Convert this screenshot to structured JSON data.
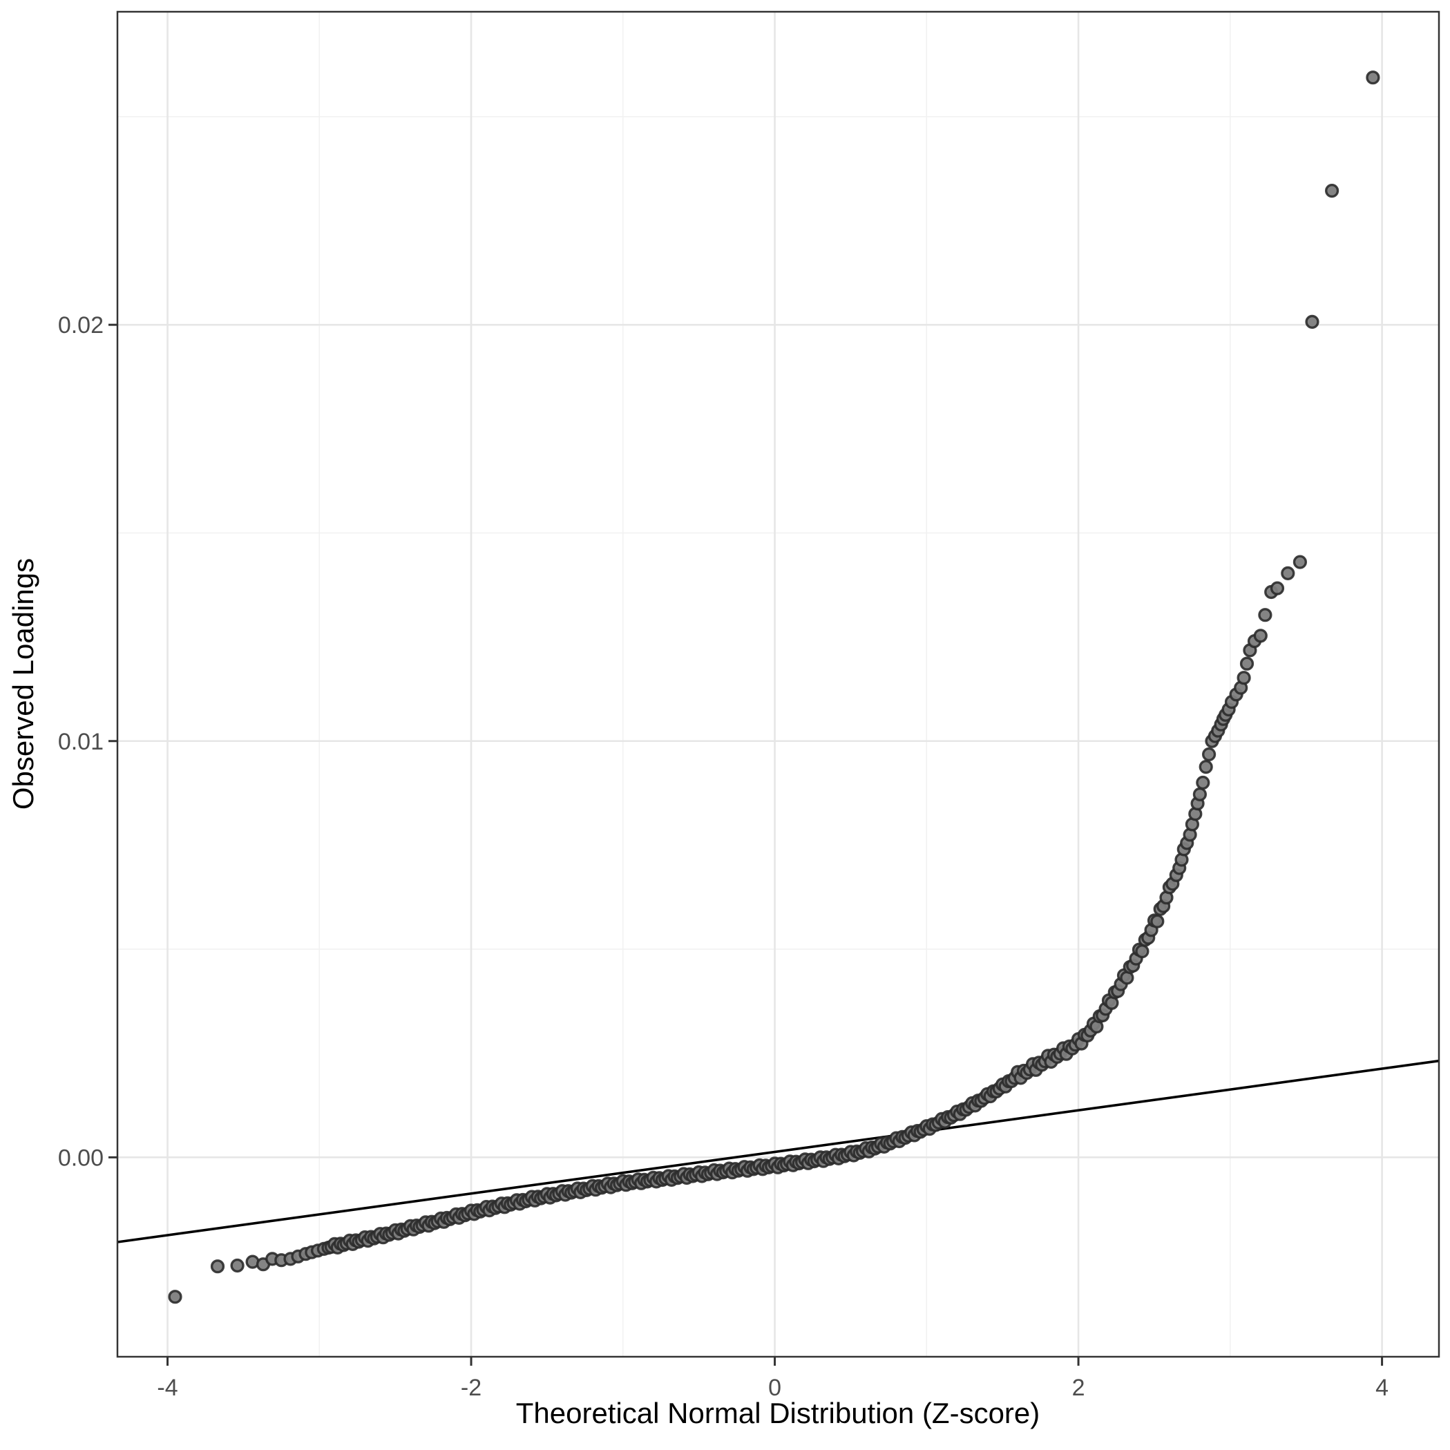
{
  "figure": {
    "background": "#ffffff",
    "panel_border_color": "#333333",
    "tick_color": "#333333",
    "tick_label_color": "#4d4d4d",
    "title_color": "#000000"
  },
  "chart_data": {
    "type": "scatter",
    "title": "",
    "xlabel": "Theoretical Normal Distribution (Z-score)",
    "ylabel": "Observed Loadings",
    "xlim": [
      -4.33,
      4.375
    ],
    "ylim": [
      -0.00479,
      0.02752
    ],
    "grid": {
      "major_color": "#e6e6e6",
      "minor_color": "#f1f1f1",
      "major_width": 2.6,
      "minor_width": 1.5
    },
    "x_major_ticks": [
      {
        "value": -4,
        "label": "-4"
      },
      {
        "value": -2,
        "label": "-2"
      },
      {
        "value": 0,
        "label": "0"
      },
      {
        "value": 2,
        "label": "2"
      },
      {
        "value": 4,
        "label": "4"
      }
    ],
    "x_minor_ticks": [
      -3,
      -1,
      1,
      3
    ],
    "y_major_ticks": [
      {
        "value": 0.0,
        "label": "0.00"
      },
      {
        "value": 0.01,
        "label": "0.01"
      },
      {
        "value": 0.02,
        "label": "0.02"
      }
    ],
    "y_minor_ticks": [
      0.005,
      0.015,
      0.025
    ],
    "reference_line": {
      "slope": 0.0005,
      "intercept": 0.00013,
      "color": "#000000",
      "width": 3.6
    },
    "point_style": {
      "radius": 8.4,
      "fill": "#7d7d7d",
      "fill_opacity": 0.95,
      "stroke": "#2b2b2b",
      "stroke_opacity": 0.9,
      "stroke_width": 3.4
    },
    "series": {
      "lower_tail_points": [
        [
          -3.95,
          -0.00335
        ],
        [
          -3.67,
          -0.00262
        ],
        [
          -3.54,
          -0.0026
        ],
        [
          -3.44,
          -0.00251
        ],
        [
          -3.37,
          -0.00257
        ],
        [
          -3.31,
          -0.00244
        ],
        [
          -3.25,
          -0.00247
        ],
        [
          -3.19,
          -0.00244
        ],
        [
          -3.14,
          -0.00238
        ],
        [
          -3.09,
          -0.00232
        ],
        [
          -3.05,
          -0.00228
        ],
        [
          -3.01,
          -0.00224
        ],
        [
          -2.97,
          -0.0022
        ],
        [
          -2.94,
          -0.00217
        ]
      ],
      "dense_band": {
        "note": "overplotted single-file chain of points; anchors are centerline readings",
        "z_start": -2.92,
        "z_end": 2.6,
        "z_step": 0.02,
        "jitter": 5e-05,
        "anchors": [
          [
            -2.92,
            -0.00215
          ],
          [
            -2.8,
            -0.00205
          ],
          [
            -2.7,
            -0.00197
          ],
          [
            -2.6,
            -0.00189
          ],
          [
            -2.5,
            -0.0018
          ],
          [
            -2.4,
            -0.0017
          ],
          [
            -2.3,
            -0.00161
          ],
          [
            -2.2,
            -0.00152
          ],
          [
            -2.1,
            -0.00142
          ],
          [
            -2.0,
            -0.00133
          ],
          [
            -1.9,
            -0.00124
          ],
          [
            -1.8,
            -0.00116
          ],
          [
            -1.7,
            -0.00108
          ],
          [
            -1.6,
            -0.001
          ],
          [
            -1.5,
            -0.00093
          ],
          [
            -1.4,
            -0.00086
          ],
          [
            -1.3,
            -0.0008
          ],
          [
            -1.2,
            -0.00074
          ],
          [
            -1.1,
            -0.00068
          ],
          [
            -1.0,
            -0.00062
          ],
          [
            -0.9,
            -0.00058
          ],
          [
            -0.8,
            -0.00054
          ],
          [
            -0.7,
            -0.0005
          ],
          [
            -0.6,
            -0.00045
          ],
          [
            -0.5,
            -0.00041
          ],
          [
            -0.4,
            -0.00036
          ],
          [
            -0.3,
            -0.00032
          ],
          [
            -0.2,
            -0.00028
          ],
          [
            -0.1,
            -0.00024
          ],
          [
            0.0,
            -0.0002
          ],
          [
            0.1,
            -0.00015
          ],
          [
            0.2,
            -0.0001
          ],
          [
            0.3,
            -5e-05
          ],
          [
            0.4,
            1e-05
          ],
          [
            0.5,
            8e-05
          ],
          [
            0.6,
            0.00017
          ],
          [
            0.7,
            0.00028
          ],
          [
            0.8,
            0.00041
          ],
          [
            0.9,
            0.00055
          ],
          [
            1.0,
            0.0007
          ],
          [
            1.1,
            0.00087
          ],
          [
            1.2,
            0.00105
          ],
          [
            1.3,
            0.00125
          ],
          [
            1.4,
            0.00147
          ],
          [
            1.5,
            0.0017
          ],
          [
            1.6,
            0.00196
          ],
          [
            1.7,
            0.00215
          ],
          [
            1.8,
            0.00235
          ],
          [
            1.9,
            0.00253
          ],
          [
            2.0,
            0.00275
          ],
          [
            2.1,
            0.00312
          ],
          [
            2.2,
            0.00368
          ],
          [
            2.3,
            0.00428
          ],
          [
            2.4,
            0.0049
          ],
          [
            2.5,
            0.0056
          ],
          [
            2.6,
            0.0064
          ]
        ]
      },
      "upper_chain_points": [
        [
          2.62,
          0.00657
        ],
        [
          2.645,
          0.00678
        ],
        [
          2.665,
          0.00695
        ],
        [
          2.68,
          0.00715
        ],
        [
          2.695,
          0.0074
        ],
        [
          2.715,
          0.00755
        ],
        [
          2.735,
          0.00775
        ],
        [
          2.75,
          0.008
        ],
        [
          2.77,
          0.00825
        ],
        [
          2.785,
          0.0085
        ],
        [
          2.8,
          0.00872
        ],
        [
          2.82,
          0.009
        ],
        [
          2.84,
          0.00938
        ],
        [
          2.86,
          0.00968
        ],
        [
          2.88,
          0.01
        ],
        [
          2.9,
          0.01012
        ],
        [
          2.92,
          0.01025
        ],
        [
          2.94,
          0.0104
        ],
        [
          2.955,
          0.01053
        ],
        [
          2.97,
          0.01063
        ],
        [
          2.99,
          0.01076
        ],
        [
          3.01,
          0.01094
        ],
        [
          3.04,
          0.01112
        ],
        [
          3.07,
          0.01128
        ],
        [
          3.09,
          0.01152
        ],
        [
          3.11,
          0.01186
        ],
        [
          3.13,
          0.01218
        ],
        [
          3.16,
          0.0124
        ],
        [
          3.2,
          0.01253
        ],
        [
          3.23,
          0.01303
        ],
        [
          3.27,
          0.01358
        ],
        [
          3.31,
          0.01367
        ],
        [
          3.38,
          0.01403
        ],
        [
          3.46,
          0.0143
        ]
      ],
      "high_outliers": [
        [
          3.54,
          0.02007
        ],
        [
          3.67,
          0.02322
        ],
        [
          3.94,
          0.02594
        ]
      ]
    }
  }
}
